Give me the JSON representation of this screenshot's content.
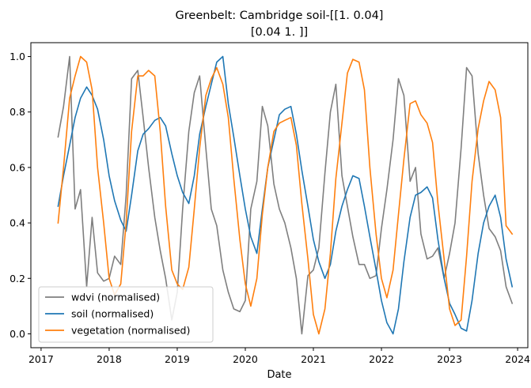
{
  "chart_data": {
    "type": "line",
    "title": "Greenbelt: Cambridge soil-[[1.   0.04]",
    "title_line2": "[0.04 1.  ]]",
    "xlabel": "Date",
    "ylabel": "",
    "xlim": [
      2016.85,
      2024.15
    ],
    "ylim": [
      -0.05,
      1.05
    ],
    "x_ticks": [
      2017,
      2018,
      2019,
      2020,
      2021,
      2022,
      2023,
      2024
    ],
    "x_tick_labels": [
      "2017",
      "2018",
      "2019",
      "2020",
      "2021",
      "2022",
      "2023",
      "2024"
    ],
    "y_ticks": [
      0.0,
      0.2,
      0.4,
      0.6,
      0.8,
      1.0
    ],
    "y_tick_labels": [
      "0.0",
      "0.2",
      "0.4",
      "0.6",
      "0.8",
      "1.0"
    ],
    "grid": false,
    "legend_position": "lower-left",
    "series": [
      {
        "name": "wdvi (normalised)",
        "color": "#7f7f7f",
        "x": [
          2017.25,
          2017.33,
          2017.42,
          2017.5,
          2017.58,
          2017.67,
          2017.75,
          2017.83,
          2017.92,
          2018.0,
          2018.08,
          2018.17,
          2018.25,
          2018.33,
          2018.42,
          2018.5,
          2018.58,
          2018.67,
          2018.75,
          2018.83,
          2018.92,
          2019.0,
          2019.08,
          2019.17,
          2019.25,
          2019.33,
          2019.42,
          2019.5,
          2019.58,
          2019.67,
          2019.75,
          2019.83,
          2019.92,
          2020.0,
          2020.08,
          2020.17,
          2020.25,
          2020.33,
          2020.42,
          2020.5,
          2020.58,
          2020.67,
          2020.75,
          2020.83,
          2020.92,
          2021.0,
          2021.08,
          2021.17,
          2021.25,
          2021.33,
          2021.42,
          2021.5,
          2021.58,
          2021.67,
          2021.75,
          2021.83,
          2021.92,
          2022.0,
          2022.08,
          2022.17,
          2022.25,
          2022.33,
          2022.42,
          2022.5,
          2022.58,
          2022.67,
          2022.75,
          2022.83,
          2022.92,
          2023.0,
          2023.08,
          2023.17,
          2023.25,
          2023.33,
          2023.42,
          2023.5,
          2023.58,
          2023.67,
          2023.75,
          2023.83,
          2023.92
        ],
        "values": [
          0.71,
          0.82,
          1.0,
          0.45,
          0.52,
          0.17,
          0.42,
          0.22,
          0.19,
          0.2,
          0.28,
          0.25,
          0.5,
          0.92,
          0.95,
          0.78,
          0.6,
          0.42,
          0.3,
          0.2,
          0.05,
          0.15,
          0.45,
          0.73,
          0.87,
          0.93,
          0.67,
          0.45,
          0.39,
          0.23,
          0.15,
          0.09,
          0.08,
          0.12,
          0.45,
          0.55,
          0.82,
          0.75,
          0.54,
          0.45,
          0.4,
          0.31,
          0.2,
          0.0,
          0.21,
          0.23,
          0.31,
          0.58,
          0.8,
          0.9,
          0.57,
          0.46,
          0.35,
          0.25,
          0.25,
          0.2,
          0.21,
          0.38,
          0.52,
          0.7,
          0.92,
          0.86,
          0.55,
          0.6,
          0.36,
          0.27,
          0.28,
          0.31,
          0.2,
          0.29,
          0.4,
          0.67,
          0.96,
          0.93,
          0.65,
          0.5,
          0.38,
          0.35,
          0.3,
          0.17,
          0.11
        ]
      },
      {
        "name": "soil (normalised)",
        "color": "#1f77b4",
        "x": [
          2017.25,
          2017.33,
          2017.42,
          2017.5,
          2017.58,
          2017.67,
          2017.75,
          2017.83,
          2017.92,
          2018.0,
          2018.08,
          2018.17,
          2018.25,
          2018.33,
          2018.42,
          2018.5,
          2018.58,
          2018.67,
          2018.75,
          2018.83,
          2018.92,
          2019.0,
          2019.08,
          2019.17,
          2019.25,
          2019.33,
          2019.42,
          2019.5,
          2019.58,
          2019.67,
          2019.75,
          2019.83,
          2019.92,
          2020.0,
          2020.08,
          2020.17,
          2020.25,
          2020.33,
          2020.42,
          2020.5,
          2020.58,
          2020.67,
          2020.75,
          2020.83,
          2020.92,
          2021.0,
          2021.08,
          2021.17,
          2021.25,
          2021.33,
          2021.42,
          2021.5,
          2021.58,
          2021.67,
          2021.75,
          2021.83,
          2021.92,
          2022.0,
          2022.08,
          2022.17,
          2022.25,
          2022.33,
          2022.42,
          2022.5,
          2022.58,
          2022.67,
          2022.75,
          2022.83,
          2022.92,
          2023.0,
          2023.08,
          2023.17,
          2023.25,
          2023.33,
          2023.42,
          2023.5,
          2023.58,
          2023.67,
          2023.75,
          2023.83,
          2023.92
        ],
        "values": [
          0.46,
          0.57,
          0.68,
          0.78,
          0.85,
          0.89,
          0.86,
          0.81,
          0.7,
          0.57,
          0.48,
          0.41,
          0.37,
          0.5,
          0.66,
          0.72,
          0.74,
          0.77,
          0.78,
          0.75,
          0.65,
          0.57,
          0.51,
          0.47,
          0.57,
          0.72,
          0.82,
          0.9,
          0.98,
          1.0,
          0.83,
          0.71,
          0.57,
          0.45,
          0.35,
          0.29,
          0.45,
          0.6,
          0.7,
          0.79,
          0.81,
          0.82,
          0.72,
          0.59,
          0.46,
          0.34,
          0.26,
          0.2,
          0.25,
          0.37,
          0.46,
          0.52,
          0.57,
          0.56,
          0.46,
          0.35,
          0.23,
          0.12,
          0.04,
          0.0,
          0.09,
          0.26,
          0.42,
          0.5,
          0.51,
          0.53,
          0.49,
          0.34,
          0.2,
          0.11,
          0.07,
          0.02,
          0.01,
          0.12,
          0.29,
          0.4,
          0.46,
          0.5,
          0.42,
          0.27,
          0.17
        ]
      },
      {
        "name": "vegetation (normalised)",
        "color": "#ff7f0e",
        "x": [
          2017.25,
          2017.33,
          2017.42,
          2017.5,
          2017.58,
          2017.67,
          2017.75,
          2017.83,
          2017.92,
          2018.0,
          2018.08,
          2018.17,
          2018.25,
          2018.33,
          2018.42,
          2018.5,
          2018.58,
          2018.67,
          2018.75,
          2018.83,
          2018.92,
          2019.0,
          2019.08,
          2019.17,
          2019.25,
          2019.33,
          2019.42,
          2019.5,
          2019.58,
          2019.67,
          2019.75,
          2019.83,
          2019.92,
          2020.0,
          2020.08,
          2020.17,
          2020.25,
          2020.33,
          2020.42,
          2020.5,
          2020.58,
          2020.67,
          2020.75,
          2020.83,
          2020.92,
          2021.0,
          2021.08,
          2021.17,
          2021.25,
          2021.33,
          2021.42,
          2021.5,
          2021.58,
          2021.67,
          2021.75,
          2021.83,
          2021.92,
          2022.0,
          2022.08,
          2022.17,
          2022.25,
          2022.33,
          2022.42,
          2022.5,
          2022.58,
          2022.67,
          2022.75,
          2022.83,
          2022.92,
          2023.0,
          2023.08,
          2023.17,
          2023.25,
          2023.33,
          2023.42,
          2023.5,
          2023.58,
          2023.67,
          2023.75,
          2023.83,
          2023.92
        ],
        "values": [
          0.4,
          0.6,
          0.85,
          0.93,
          1.0,
          0.98,
          0.88,
          0.6,
          0.4,
          0.2,
          0.14,
          0.18,
          0.4,
          0.73,
          0.93,
          0.93,
          0.95,
          0.93,
          0.73,
          0.46,
          0.23,
          0.18,
          0.16,
          0.24,
          0.45,
          0.67,
          0.86,
          0.92,
          0.96,
          0.9,
          0.78,
          0.56,
          0.34,
          0.18,
          0.1,
          0.2,
          0.43,
          0.6,
          0.73,
          0.76,
          0.77,
          0.78,
          0.68,
          0.47,
          0.27,
          0.07,
          0.0,
          0.09,
          0.29,
          0.56,
          0.76,
          0.94,
          0.99,
          0.98,
          0.88,
          0.6,
          0.36,
          0.2,
          0.13,
          0.23,
          0.43,
          0.63,
          0.83,
          0.84,
          0.79,
          0.76,
          0.69,
          0.47,
          0.27,
          0.09,
          0.03,
          0.05,
          0.28,
          0.55,
          0.74,
          0.84,
          0.91,
          0.88,
          0.78,
          0.39,
          0.36
        ]
      }
    ]
  }
}
